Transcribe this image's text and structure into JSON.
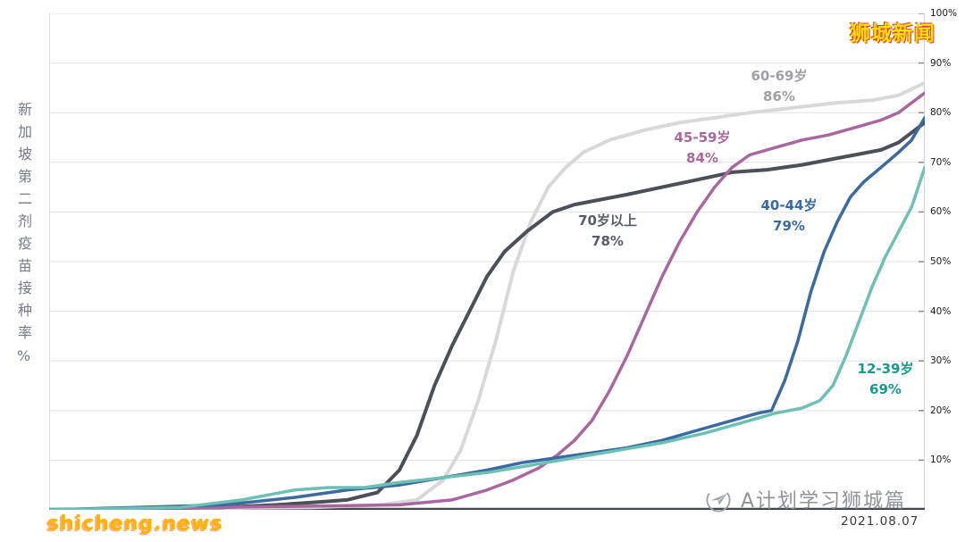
{
  "branding": {
    "top_right_watermark": "狮城新闻",
    "bottom_left_watermark": "shicheng.news",
    "footer_logo_text": "A计划学习狮城篇",
    "date": "2021.08.07"
  },
  "axis": {
    "vertical_title": "新加坡第二剂疫苗接种率%"
  },
  "chart_data": {
    "type": "line",
    "title": "新加坡第二剂疫苗接种率%",
    "xlabel": "",
    "ylabel": "接种率 %",
    "ylim": [
      0,
      100
    ],
    "grid": true,
    "legend_position": "inline-labels",
    "y_ticks": [
      "100%",
      "90%",
      "80%",
      "70%",
      "60%",
      "50%",
      "40%",
      "30%",
      "20%",
      "10%"
    ],
    "series": [
      {
        "name": "60-69岁",
        "label_value": "86%",
        "final_value": 86,
        "color": "#d8d8da",
        "stroke_width": 4,
        "points": [
          [
            0,
            0
          ],
          [
            0.3,
            0.5
          ],
          [
            0.38,
            1
          ],
          [
            0.42,
            2
          ],
          [
            0.45,
            6
          ],
          [
            0.47,
            12
          ],
          [
            0.49,
            22
          ],
          [
            0.51,
            34
          ],
          [
            0.53,
            48
          ],
          [
            0.55,
            58
          ],
          [
            0.57,
            65
          ],
          [
            0.59,
            69
          ],
          [
            0.61,
            72
          ],
          [
            0.64,
            74.5
          ],
          [
            0.68,
            76.5
          ],
          [
            0.72,
            78
          ],
          [
            0.76,
            79
          ],
          [
            0.8,
            80
          ],
          [
            0.85,
            81
          ],
          [
            0.9,
            82
          ],
          [
            0.94,
            82.5
          ],
          [
            0.97,
            83.5
          ],
          [
            1.0,
            86
          ]
        ]
      },
      {
        "name": "70岁以上",
        "label_value": "78%",
        "final_value": 78,
        "color": "#4b5058",
        "stroke_width": 4,
        "points": [
          [
            0,
            0
          ],
          [
            0.2,
            0.5
          ],
          [
            0.26,
            1
          ],
          [
            0.3,
            1.5
          ],
          [
            0.34,
            2
          ],
          [
            0.375,
            3.5
          ],
          [
            0.4,
            8
          ],
          [
            0.42,
            15
          ],
          [
            0.44,
            25
          ],
          [
            0.46,
            33
          ],
          [
            0.48,
            40
          ],
          [
            0.5,
            47
          ],
          [
            0.52,
            52
          ],
          [
            0.545,
            56
          ],
          [
            0.575,
            60
          ],
          [
            0.6,
            61.5
          ],
          [
            0.63,
            62.5
          ],
          [
            0.66,
            63.5
          ],
          [
            0.7,
            65
          ],
          [
            0.74,
            66.5
          ],
          [
            0.78,
            68
          ],
          [
            0.82,
            68.5
          ],
          [
            0.86,
            69.5
          ],
          [
            0.89,
            70.5
          ],
          [
            0.92,
            71.5
          ],
          [
            0.95,
            72.5
          ],
          [
            0.97,
            74
          ],
          [
            1.0,
            78
          ]
        ]
      },
      {
        "name": "45-59岁",
        "label_value": "84%",
        "final_value": 84,
        "color": "#a8689e",
        "stroke_width": 3.5,
        "points": [
          [
            0,
            0
          ],
          [
            0.4,
            1
          ],
          [
            0.46,
            2
          ],
          [
            0.5,
            4
          ],
          [
            0.53,
            6
          ],
          [
            0.56,
            8.5
          ],
          [
            0.58,
            11
          ],
          [
            0.6,
            14
          ],
          [
            0.62,
            18
          ],
          [
            0.64,
            24
          ],
          [
            0.66,
            31
          ],
          [
            0.68,
            39
          ],
          [
            0.7,
            47
          ],
          [
            0.72,
            54
          ],
          [
            0.74,
            60
          ],
          [
            0.76,
            65
          ],
          [
            0.78,
            69
          ],
          [
            0.8,
            71.5
          ],
          [
            0.83,
            73
          ],
          [
            0.86,
            74.5
          ],
          [
            0.89,
            75.5
          ],
          [
            0.92,
            77
          ],
          [
            0.95,
            78.5
          ],
          [
            0.97,
            80
          ],
          [
            1.0,
            84
          ]
        ]
      },
      {
        "name": "40-44岁",
        "label_value": "79%",
        "final_value": 79,
        "color": "#3a6aa0",
        "stroke_width": 3.5,
        "points": [
          [
            0,
            0
          ],
          [
            0.2,
            1
          ],
          [
            0.28,
            2.5
          ],
          [
            0.34,
            4
          ],
          [
            0.4,
            5
          ],
          [
            0.45,
            6.5
          ],
          [
            0.5,
            8
          ],
          [
            0.54,
            9.5
          ],
          [
            0.58,
            10.5
          ],
          [
            0.62,
            11.5
          ],
          [
            0.66,
            12.5
          ],
          [
            0.7,
            14
          ],
          [
            0.74,
            16
          ],
          [
            0.78,
            18
          ],
          [
            0.81,
            19.5
          ],
          [
            0.825,
            20
          ],
          [
            0.84,
            26
          ],
          [
            0.855,
            34
          ],
          [
            0.87,
            44
          ],
          [
            0.885,
            52
          ],
          [
            0.9,
            58
          ],
          [
            0.915,
            63
          ],
          [
            0.93,
            66
          ],
          [
            0.95,
            69
          ],
          [
            0.97,
            72
          ],
          [
            0.985,
            74.5
          ],
          [
            1.0,
            79
          ]
        ]
      },
      {
        "name": "12-39岁",
        "label_value": "69%",
        "final_value": 69,
        "color": "#6cc0b4",
        "stroke_width": 3.5,
        "points": [
          [
            0,
            0
          ],
          [
            0.15,
            0.5
          ],
          [
            0.22,
            2
          ],
          [
            0.25,
            3
          ],
          [
            0.28,
            4
          ],
          [
            0.32,
            4.5
          ],
          [
            0.36,
            4.5
          ],
          [
            0.4,
            5.5
          ],
          [
            0.45,
            6.5
          ],
          [
            0.5,
            7.5
          ],
          [
            0.55,
            9
          ],
          [
            0.6,
            10.5
          ],
          [
            0.65,
            12
          ],
          [
            0.7,
            13.5
          ],
          [
            0.75,
            15.5
          ],
          [
            0.8,
            18
          ],
          [
            0.83,
            19.5
          ],
          [
            0.86,
            20.5
          ],
          [
            0.88,
            22
          ],
          [
            0.895,
            25
          ],
          [
            0.91,
            31
          ],
          [
            0.925,
            38
          ],
          [
            0.94,
            45
          ],
          [
            0.955,
            51
          ],
          [
            0.97,
            56
          ],
          [
            0.985,
            61
          ],
          [
            1.0,
            69
          ]
        ]
      }
    ]
  }
}
